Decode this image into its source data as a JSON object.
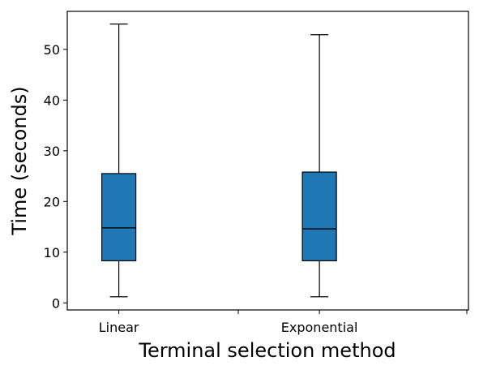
{
  "chart_data": {
    "type": "boxplot",
    "title": "",
    "xlabel": "Terminal selection method",
    "ylabel": "Time (seconds)",
    "ylim": [
      -1.4,
      57.5
    ],
    "yticks": [
      0,
      10,
      20,
      30,
      40,
      50
    ],
    "ytick_labels": [
      "0",
      "10",
      "20",
      "30",
      "40",
      "50"
    ],
    "grid": false,
    "categories": [
      "Linear",
      "Exponential"
    ],
    "boxes": [
      {
        "category": "Linear",
        "whisker_low": 1.2,
        "q1": 8.3,
        "median": 14.8,
        "q3": 25.5,
        "whisker_high": 55.0
      },
      {
        "category": "Exponential",
        "whisker_low": 1.2,
        "q1": 8.3,
        "median": 14.6,
        "q3": 25.8,
        "whisker_high": 52.9
      }
    ],
    "colors": {
      "box_fill": "#1f77b4",
      "line": "#000000"
    }
  }
}
